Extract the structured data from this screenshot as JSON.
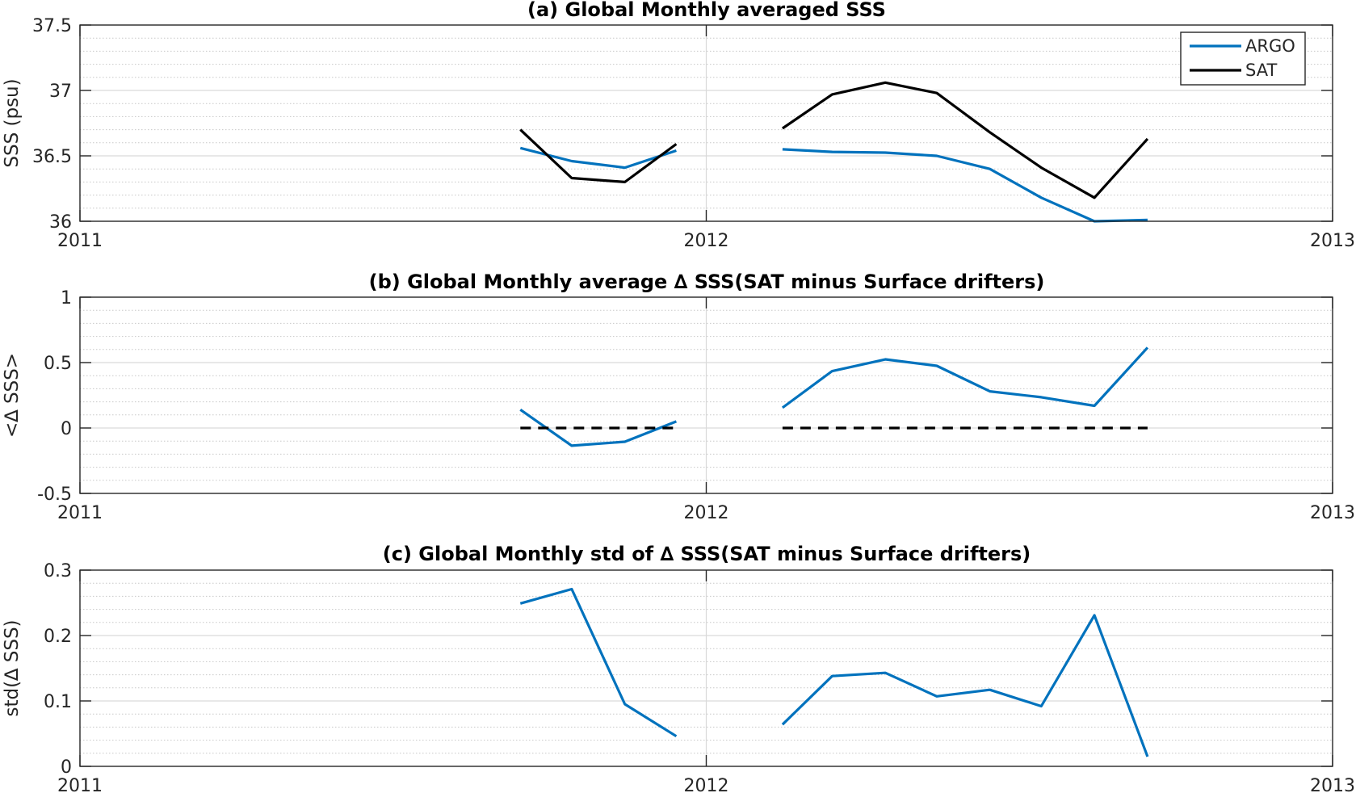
{
  "figure": {
    "colors": {
      "argo": "#0072BD",
      "sat": "#000000",
      "axis": "#262626",
      "grid": "#d9d9d9",
      "minor_grid": "#c8c8c8"
    }
  },
  "chart_data": [
    {
      "type": "line",
      "title": "(a) Global Monthly averaged SSS",
      "xlabel": "",
      "ylabel": "SSS (psu)",
      "xlim": [
        "2011-01-01",
        "2013-01-01"
      ],
      "ylim": [
        36,
        37.5
      ],
      "x_ticks": [
        "2011",
        "2012",
        "2013"
      ],
      "y_ticks": [
        "36",
        "36.5",
        "37",
        "37.5"
      ],
      "grid": true,
      "minor_grid": true,
      "legend": {
        "placement": "top-right",
        "entries": [
          "ARGO",
          "SAT"
        ]
      },
      "series": [
        {
          "name": "ARGO",
          "color": "#0072BD",
          "segments": [
            {
              "x": [
                "2011-09-15",
                "2011-10-15",
                "2011-11-15",
                "2011-12-15"
              ],
              "y": [
                36.56,
                36.46,
                36.41,
                36.54
              ]
            },
            {
              "x": [
                "2012-02-15",
                "2012-03-15",
                "2012-04-15",
                "2012-05-15",
                "2012-06-15",
                "2012-07-15",
                "2012-08-15",
                "2012-09-15"
              ],
              "y": [
                36.55,
                36.53,
                36.525,
                36.5,
                36.4,
                36.18,
                36.0,
                36.01
              ]
            }
          ]
        },
        {
          "name": "SAT",
          "color": "#000000",
          "segments": [
            {
              "x": [
                "2011-09-15",
                "2011-10-15",
                "2011-11-15",
                "2011-12-15"
              ],
              "y": [
                36.7,
                36.33,
                36.3,
                36.59
              ]
            },
            {
              "x": [
                "2012-02-15",
                "2012-03-15",
                "2012-04-15",
                "2012-05-15",
                "2012-06-15",
                "2012-07-15",
                "2012-08-15",
                "2012-09-15"
              ],
              "y": [
                36.71,
                36.97,
                37.06,
                36.98,
                36.68,
                36.41,
                36.18,
                36.63
              ]
            }
          ]
        }
      ]
    },
    {
      "type": "line",
      "title": "(b) Global Monthly average ∆ SSS(SAT minus Surface drifters)",
      "xlabel": "",
      "ylabel": "<∆ SSS>",
      "xlim": [
        "2011-01-01",
        "2013-01-01"
      ],
      "ylim": [
        -0.5,
        1
      ],
      "x_ticks": [
        "2011",
        "2012",
        "2013"
      ],
      "y_ticks": [
        "-0.5",
        "0",
        "0.5",
        "1"
      ],
      "grid": true,
      "minor_grid": true,
      "series": [
        {
          "color": "#0072BD",
          "segments": [
            {
              "x": [
                "2011-09-15",
                "2011-10-15",
                "2011-11-15",
                "2011-12-15"
              ],
              "y": [
                0.14,
                -0.135,
                -0.105,
                0.05
              ]
            },
            {
              "x": [
                "2012-02-15",
                "2012-03-15",
                "2012-04-15",
                "2012-05-15",
                "2012-06-15",
                "2012-07-15",
                "2012-08-15",
                "2012-09-15"
              ],
              "y": [
                0.155,
                0.435,
                0.525,
                0.475,
                0.28,
                0.235,
                0.17,
                0.615
              ]
            }
          ]
        },
        {
          "color": "#000000",
          "dashed": true,
          "segments": [
            {
              "x": [
                "2011-09-15",
                "2011-12-15"
              ],
              "y": [
                0,
                0
              ]
            },
            {
              "x": [
                "2012-02-15",
                "2012-09-15"
              ],
              "y": [
                0,
                0
              ]
            }
          ]
        }
      ]
    },
    {
      "type": "line",
      "title": "(c) Global Monthly std of ∆ SSS(SAT minus Surface drifters)",
      "xlabel": "",
      "ylabel": "std(∆ SSS)",
      "xlim": [
        "2011-01-01",
        "2013-01-01"
      ],
      "ylim": [
        0,
        0.3
      ],
      "x_ticks": [
        "2011",
        "2012",
        "2013"
      ],
      "y_ticks": [
        "0",
        "0.1",
        "0.2",
        "0.3"
      ],
      "grid": true,
      "minor_grid": true,
      "series": [
        {
          "color": "#0072BD",
          "segments": [
            {
              "x": [
                "2011-09-15",
                "2011-10-15",
                "2011-11-15",
                "2011-12-15"
              ],
              "y": [
                0.249,
                0.271,
                0.095,
                0.046
              ]
            },
            {
              "x": [
                "2012-02-15",
                "2012-03-15",
                "2012-04-15",
                "2012-05-15",
                "2012-06-15",
                "2012-07-15",
                "2012-08-15",
                "2012-09-15"
              ],
              "y": [
                0.064,
                0.138,
                0.143,
                0.107,
                0.117,
                0.092,
                0.231,
                0.015
              ]
            }
          ]
        }
      ]
    }
  ]
}
